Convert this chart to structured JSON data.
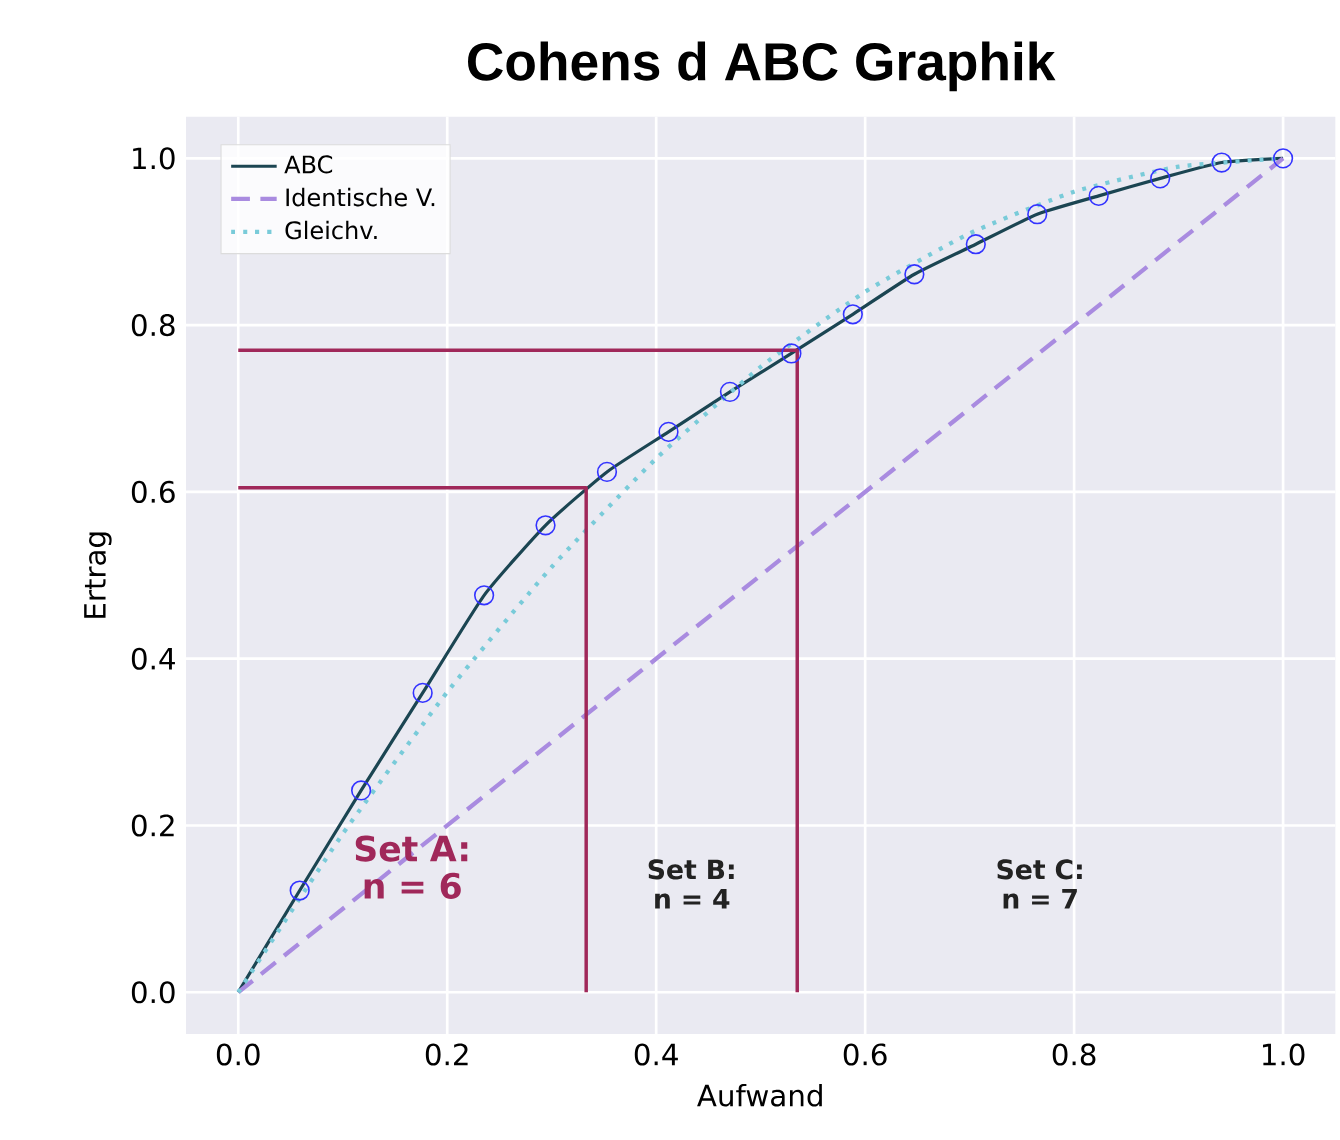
{
  "chart_data": {
    "type": "line",
    "title": "Cohens d ABC Graphik",
    "xlabel": "Aufwand",
    "ylabel": "Ertrag",
    "xlim": [
      -0.05,
      1.05
    ],
    "ylim": [
      -0.05,
      1.05
    ],
    "xticks": [
      {
        "value": 0,
        "label": "0.0"
      },
      {
        "value": 0.2,
        "label": "0.2"
      },
      {
        "value": 0.4,
        "label": "0.4"
      },
      {
        "value": 0.6,
        "label": "0.6"
      },
      {
        "value": 0.8,
        "label": "0.8"
      },
      {
        "value": 1,
        "label": "1.0"
      }
    ],
    "yticks": [
      {
        "value": 0,
        "label": "0.0"
      },
      {
        "value": 0.2,
        "label": "0.2"
      },
      {
        "value": 0.4,
        "label": "0.4"
      },
      {
        "value": 0.6,
        "label": "0.6"
      },
      {
        "value": 0.8,
        "label": "0.8"
      },
      {
        "value": 1,
        "label": "1.0"
      }
    ],
    "grid": true,
    "legend": "top left",
    "series": [
      {
        "name": "ABC",
        "color": "#1b4552",
        "line_style": "solid",
        "x": [
          0,
          0.0588,
          0.1176,
          0.1765,
          0.2353,
          0.2941,
          0.3529,
          0.4118,
          0.4706,
          0.5294,
          0.5882,
          0.6471,
          0.7059,
          0.7647,
          0.8235,
          0.8824,
          0.9412,
          1.0
        ],
        "values": [
          0,
          0.122,
          0.242,
          0.359,
          0.476,
          0.56,
          0.624,
          0.672,
          0.72,
          0.766,
          0.813,
          0.861,
          0.897,
          0.933,
          0.955,
          0.976,
          0.995,
          1.0
        ]
      },
      {
        "name": "Identische V.",
        "color": "#a98be0",
        "line_style": "dashed",
        "x": [
          0,
          1
        ],
        "values": [
          0,
          1
        ]
      },
      {
        "name": "Gleichv.",
        "color": "#79cbd9",
        "line_style": "dotted",
        "x": [
          0,
          0.1,
          0.2,
          0.3,
          0.4,
          0.5,
          0.6,
          0.7,
          0.8,
          0.9,
          1.0
        ],
        "values": [
          0,
          0.19,
          0.36,
          0.51,
          0.64,
          0.75,
          0.84,
          0.91,
          0.96,
          0.99,
          1.0
        ]
      },
      {
        "type": "scatter",
        "marker": "circle",
        "color": "#3333ff",
        "x": [
          0.0588,
          0.1176,
          0.1765,
          0.2353,
          0.2941,
          0.3529,
          0.4118,
          0.4706,
          0.5294,
          0.5882,
          0.6471,
          0.7059,
          0.7647,
          0.8235,
          0.8824,
          0.9412,
          1.0
        ],
        "values": [
          0.122,
          0.242,
          0.359,
          0.476,
          0.56,
          0.624,
          0.672,
          0.72,
          0.766,
          0.813,
          0.861,
          0.897,
          0.933,
          0.955,
          0.976,
          0.995,
          1.0
        ]
      },
      {
        "type": "line",
        "color": "#a0285a",
        "line_style": "solid",
        "x": [
          0,
          0.333,
          0.333
        ],
        "values": [
          0.605,
          0.605,
          0
        ]
      },
      {
        "type": "line",
        "color": "#a0285a",
        "line_style": "solid",
        "x": [
          0,
          0.535,
          0.535
        ],
        "values": [
          0.77,
          0.77,
          0
        ]
      }
    ],
    "annotations": [
      "Set A: n = 6",
      "Set B: n = 4",
      "Set C: n = 7"
    ]
  }
}
